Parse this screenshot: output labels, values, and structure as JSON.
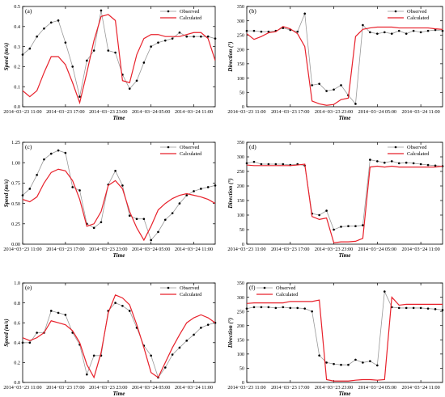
{
  "colors": {
    "observed": "#999999",
    "observed_marker": "#000000",
    "calculated": "#e8212b",
    "axes": "#000000"
  },
  "time_ticks": [
    "2014−03−23 11:00",
    "2014−03−23 17:00",
    "2014−03−23 23:00",
    "2014−03−24 05:00",
    "2014−03−24 11:00"
  ],
  "chart_data": [
    {
      "type": "line",
      "panel_label": "(a)",
      "xlabel": "Time",
      "ylabel": "Speed (m/s)",
      "x_hours": [
        0,
        27
      ],
      "ylim": [
        0,
        0.5
      ],
      "yticks": [
        "0.0",
        "0.1",
        "0.2",
        "0.3",
        "0.4",
        "0.5"
      ],
      "legend_position": "top-right",
      "series": [
        {
          "name": "Observed",
          "markers": true,
          "x": [
            0,
            1,
            2,
            3,
            4,
            5,
            6,
            7,
            8,
            9,
            10,
            11,
            12,
            13,
            14,
            15,
            16,
            17,
            18,
            19,
            20,
            21,
            22,
            23,
            24,
            25,
            26,
            27
          ],
          "values": [
            0.26,
            0.29,
            0.35,
            0.39,
            0.42,
            0.43,
            0.32,
            0.2,
            0.05,
            0.23,
            0.28,
            0.48,
            0.28,
            0.27,
            0.16,
            0.09,
            0.13,
            0.22,
            0.3,
            0.32,
            0.33,
            0.34,
            0.37,
            0.35,
            0.35,
            0.35,
            0.35,
            0.34
          ]
        },
        {
          "name": "Calculated",
          "markers": false,
          "x": [
            0,
            1,
            2,
            3,
            4,
            5,
            6,
            7,
            8,
            9,
            10,
            11,
            12,
            13,
            14,
            15,
            16,
            17,
            18,
            19,
            20,
            21,
            22,
            23,
            24,
            25,
            26,
            27
          ],
          "values": [
            0.08,
            0.05,
            0.08,
            0.17,
            0.25,
            0.25,
            0.21,
            0.12,
            0.02,
            0.17,
            0.33,
            0.45,
            0.46,
            0.43,
            0.13,
            0.12,
            0.26,
            0.34,
            0.36,
            0.36,
            0.35,
            0.35,
            0.35,
            0.36,
            0.37,
            0.37,
            0.34,
            0.23
          ]
        }
      ]
    },
    {
      "type": "line",
      "panel_label": "(b)",
      "xlabel": "Time",
      "ylabel": "Direction (°)",
      "x_hours": [
        0,
        27
      ],
      "ylim": [
        0,
        350
      ],
      "yticks": [
        "0",
        "50",
        "100",
        "150",
        "200",
        "250",
        "300",
        "350"
      ],
      "legend_position": "top-right",
      "series": [
        {
          "name": "Observed",
          "markers": true,
          "x": [
            0,
            1,
            2,
            3,
            4,
            5,
            6,
            7,
            8,
            9,
            10,
            11,
            12,
            13,
            14,
            15,
            16,
            17,
            18,
            19,
            20,
            21,
            22,
            23,
            24,
            25,
            26,
            27
          ],
          "values": [
            265,
            265,
            262,
            262,
            265,
            275,
            268,
            262,
            325,
            75,
            80,
            55,
            60,
            75,
            40,
            10,
            285,
            260,
            255,
            260,
            255,
            265,
            255,
            265,
            260,
            265,
            268,
            265
          ]
        },
        {
          "name": "Calculated",
          "markers": false,
          "x": [
            0,
            1,
            2,
            3,
            4,
            5,
            6,
            7,
            8,
            9,
            10,
            11,
            12,
            13,
            14,
            15,
            16,
            17,
            18,
            19,
            20,
            21,
            22,
            23,
            24,
            25,
            26,
            27
          ],
          "values": [
            255,
            235,
            245,
            258,
            262,
            280,
            272,
            255,
            210,
            20,
            10,
            5,
            8,
            25,
            30,
            245,
            270,
            275,
            278,
            278,
            278,
            275,
            275,
            275,
            275,
            275,
            272,
            270
          ]
        }
      ]
    },
    {
      "type": "line",
      "panel_label": "(c)",
      "xlabel": "Time",
      "ylabel": "Speed (m/s)",
      "x_hours": [
        0,
        27
      ],
      "ylim": [
        0,
        1.25
      ],
      "yticks": [
        "0.00",
        "0.25",
        "0.50",
        "0.75",
        "1.00",
        "1.25"
      ],
      "legend_position": "top-right",
      "series": [
        {
          "name": "Observed",
          "markers": true,
          "x": [
            0,
            1,
            2,
            3,
            4,
            5,
            6,
            7,
            8,
            9,
            10,
            11,
            12,
            13,
            14,
            15,
            16,
            17,
            18,
            19,
            20,
            21,
            22,
            23,
            24,
            25,
            26,
            27
          ],
          "values": [
            0.6,
            0.68,
            0.85,
            1.04,
            1.11,
            1.15,
            1.12,
            0.7,
            0.66,
            0.25,
            0.2,
            0.27,
            0.73,
            0.9,
            0.72,
            0.35,
            0.31,
            0.31,
            0.05,
            0.15,
            0.3,
            0.38,
            0.5,
            0.6,
            0.65,
            0.68,
            0.7,
            0.72
          ]
        },
        {
          "name": "Calculated",
          "markers": false,
          "x": [
            0,
            1,
            2,
            3,
            4,
            5,
            6,
            7,
            8,
            9,
            10,
            11,
            12,
            13,
            14,
            15,
            16,
            17,
            18,
            19,
            20,
            21,
            22,
            23,
            24,
            25,
            26,
            27
          ],
          "values": [
            0.55,
            0.52,
            0.58,
            0.75,
            0.88,
            0.92,
            0.9,
            0.78,
            0.55,
            0.22,
            0.25,
            0.4,
            0.72,
            0.78,
            0.68,
            0.4,
            0.2,
            0.05,
            0.22,
            0.42,
            0.5,
            0.56,
            0.6,
            0.62,
            0.6,
            0.58,
            0.55,
            0.5
          ]
        }
      ]
    },
    {
      "type": "line",
      "panel_label": "(d)",
      "xlabel": "Time",
      "ylabel": "Direction (°)",
      "x_hours": [
        0,
        27
      ],
      "ylim": [
        0,
        350
      ],
      "yticks": [
        "0",
        "50",
        "100",
        "150",
        "200",
        "250",
        "300",
        "350"
      ],
      "legend_position": "top-right",
      "series": [
        {
          "name": "Observed",
          "markers": true,
          "x": [
            0,
            1,
            2,
            3,
            4,
            5,
            6,
            7,
            8,
            9,
            10,
            11,
            12,
            13,
            14,
            15,
            16,
            17,
            18,
            19,
            20,
            21,
            22,
            23,
            24,
            25,
            26,
            27
          ],
          "values": [
            278,
            283,
            275,
            275,
            275,
            275,
            272,
            275,
            270,
            105,
            100,
            115,
            50,
            60,
            62,
            62,
            65,
            290,
            285,
            280,
            285,
            278,
            280,
            278,
            275,
            272,
            270,
            268
          ]
        },
        {
          "name": "Calculated",
          "markers": false,
          "x": [
            0,
            1,
            2,
            3,
            4,
            5,
            6,
            7,
            8,
            9,
            10,
            11,
            12,
            13,
            14,
            15,
            16,
            17,
            18,
            19,
            20,
            21,
            22,
            23,
            24,
            25,
            26,
            27
          ],
          "values": [
            272,
            270,
            270,
            270,
            270,
            270,
            270,
            272,
            275,
            95,
            85,
            90,
            5,
            8,
            8,
            10,
            20,
            265,
            268,
            265,
            268,
            265,
            265,
            265,
            265,
            265,
            265,
            268
          ]
        }
      ]
    },
    {
      "type": "line",
      "panel_label": "(e)",
      "xlabel": "Time",
      "ylabel": "Speed (m/s)",
      "x_hours": [
        0,
        27
      ],
      "ylim": [
        0,
        1.0
      ],
      "yticks": [
        "0.0",
        "0.2",
        "0.4",
        "0.6",
        "0.8",
        "1.0"
      ],
      "legend_position": "top-right",
      "series": [
        {
          "name": "Observed",
          "markers": true,
          "x": [
            0,
            1,
            2,
            3,
            4,
            5,
            6,
            7,
            8,
            9,
            10,
            11,
            12,
            13,
            14,
            15,
            16,
            17,
            18,
            19,
            20,
            21,
            22,
            23,
            24,
            25,
            26,
            27
          ],
          "values": [
            0.4,
            0.4,
            0.5,
            0.5,
            0.72,
            0.7,
            0.68,
            0.5,
            0.38,
            0.08,
            0.27,
            0.27,
            0.72,
            0.8,
            0.77,
            0.72,
            0.55,
            0.37,
            0.27,
            0.05,
            0.15,
            0.28,
            0.35,
            0.42,
            0.48,
            0.55,
            0.58,
            0.6
          ]
        },
        {
          "name": "Calculated",
          "markers": false,
          "x": [
            0,
            1,
            2,
            3,
            4,
            5,
            6,
            7,
            8,
            9,
            10,
            11,
            12,
            13,
            14,
            15,
            16,
            17,
            18,
            19,
            20,
            21,
            22,
            23,
            24,
            25,
            26,
            27
          ],
          "values": [
            0.45,
            0.42,
            0.45,
            0.5,
            0.62,
            0.6,
            0.58,
            0.52,
            0.4,
            0.18,
            0.05,
            0.3,
            0.7,
            0.88,
            0.85,
            0.78,
            0.58,
            0.35,
            0.1,
            0.05,
            0.2,
            0.35,
            0.48,
            0.6,
            0.65,
            0.68,
            0.65,
            0.6
          ]
        }
      ]
    },
    {
      "type": "line",
      "panel_label": "(f)",
      "xlabel": "Time",
      "ylabel": "Direction (°)",
      "x_hours": [
        0,
        27
      ],
      "ylim": [
        0,
        350
      ],
      "yticks": [
        "0",
        "50",
        "100",
        "150",
        "200",
        "250",
        "300",
        "350"
      ],
      "legend_position": "top-left",
      "series": [
        {
          "name": "Observed",
          "markers": true,
          "x": [
            0,
            1,
            2,
            3,
            4,
            5,
            6,
            7,
            8,
            9,
            10,
            11,
            12,
            13,
            14,
            15,
            16,
            17,
            18,
            19,
            20,
            21,
            22,
            23,
            24,
            25,
            26,
            27
          ],
          "values": [
            260,
            265,
            265,
            265,
            262,
            265,
            262,
            262,
            260,
            250,
            95,
            70,
            65,
            62,
            62,
            80,
            70,
            75,
            60,
            320,
            265,
            262,
            262,
            262,
            262,
            260,
            258,
            255
          ]
        },
        {
          "name": "Calculated",
          "markers": false,
          "x": [
            0,
            1,
            2,
            3,
            4,
            5,
            6,
            7,
            8,
            9,
            10,
            11,
            12,
            13,
            14,
            15,
            16,
            17,
            18,
            19,
            20,
            21,
            22,
            23,
            24,
            25,
            26,
            27
          ],
          "values": [
            278,
            280,
            280,
            280,
            280,
            280,
            285,
            285,
            285,
            285,
            290,
            10,
            5,
            5,
            5,
            8,
            10,
            10,
            8,
            10,
            300,
            272,
            275,
            275,
            275,
            275,
            275,
            275
          ]
        }
      ]
    }
  ]
}
